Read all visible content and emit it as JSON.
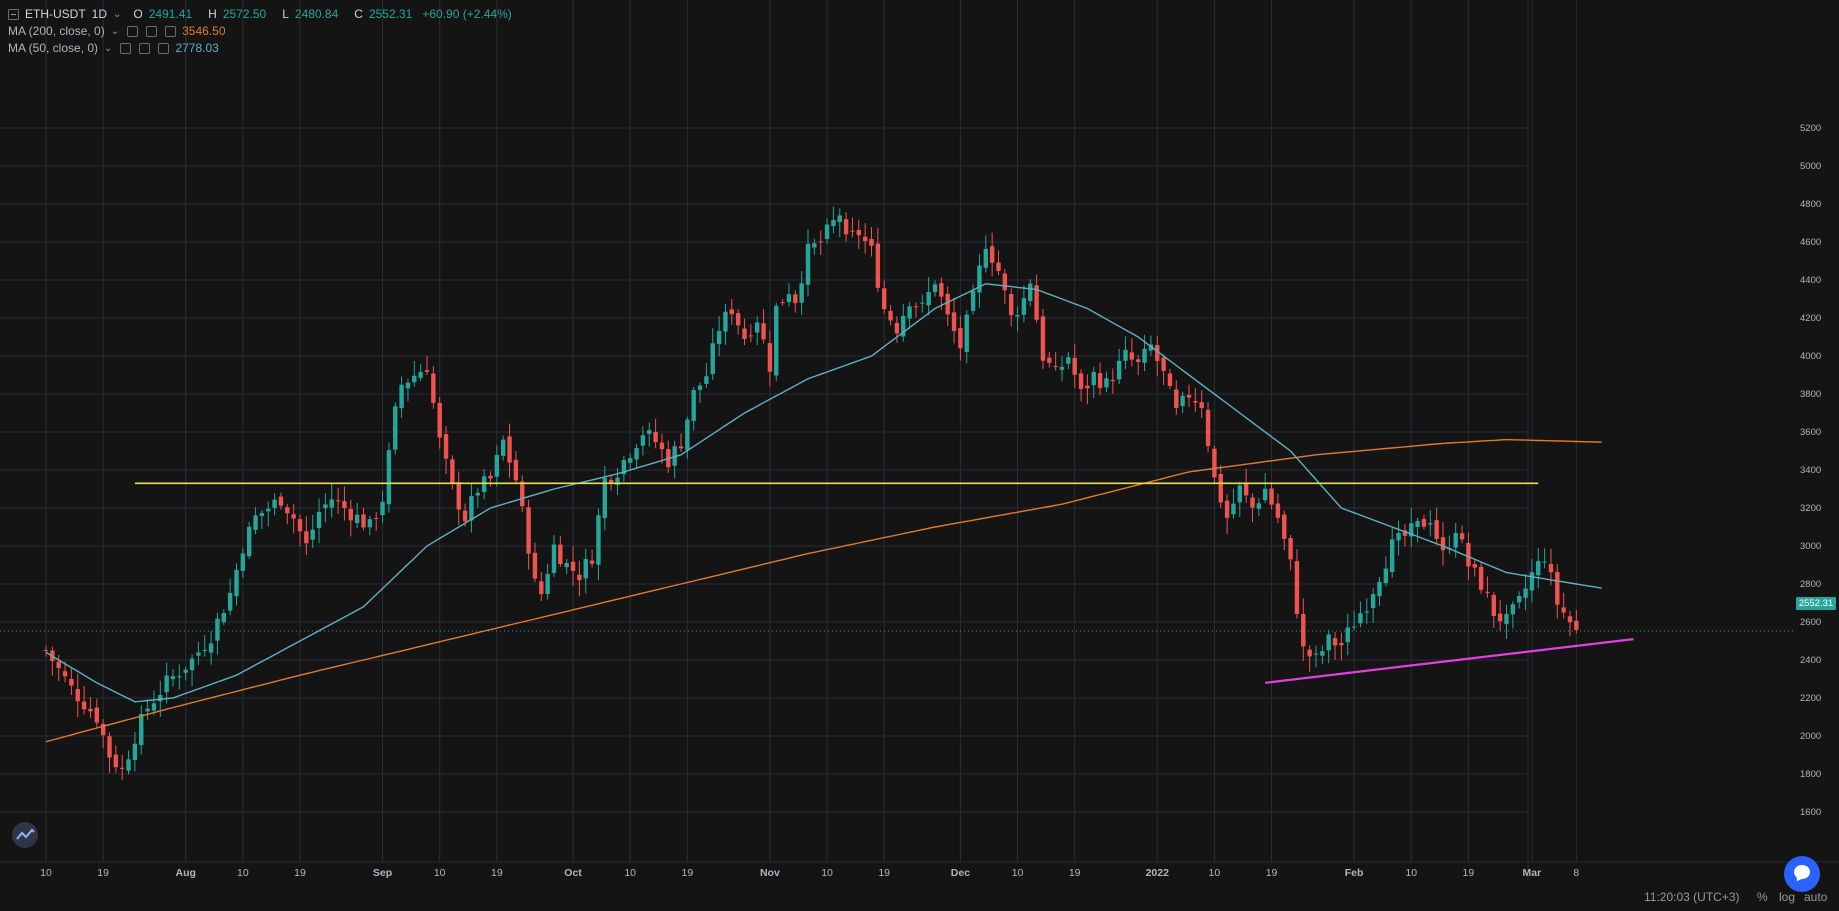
{
  "header": {
    "symbol": "ETH-USDT",
    "interval": "1D",
    "ohlc": {
      "open_label": "O",
      "open": "2491.41",
      "high_label": "H",
      "high": "2572.50",
      "low_label": "L",
      "low": "2480.84",
      "close_label": "C",
      "close": "2552.31",
      "change": "+60.90 (+2.44%)"
    }
  },
  "indicators": [
    {
      "label": "MA (200, close, 0)",
      "value": "3546.50",
      "color": "#e07a2f"
    },
    {
      "label": "MA (50, close, 0)",
      "value": "2778.03",
      "color": "#5fb0c4"
    }
  ],
  "current_price_label": "2552.31",
  "status_bar": {
    "time": "11:20:03 (UTC+3)",
    "percent": "%",
    "log": "log",
    "auto": "auto"
  },
  "colors": {
    "up": "#26a69a",
    "down": "#ef5350",
    "ma200": "#e07a2f",
    "ma50": "#5fb0c4",
    "resistance": "#e8e04a",
    "trendline": "#e040e0",
    "grid": "#2a2d36"
  },
  "chart_data": {
    "type": "candlestick",
    "y_ticks": [
      1600,
      1800,
      2000,
      2200,
      2400,
      2600,
      2800,
      3000,
      3200,
      3400,
      3600,
      3800,
      4000,
      4200,
      4400,
      4600,
      4800,
      5000,
      5200
    ],
    "ylim": [
      1500,
      5300
    ],
    "x_ticks": [
      {
        "label": "10",
        "i": 0
      },
      {
        "label": "19",
        "i": 9
      },
      {
        "label": "Aug",
        "i": 22
      },
      {
        "label": "10",
        "i": 31
      },
      {
        "label": "19",
        "i": 40
      },
      {
        "label": "Sep",
        "i": 53
      },
      {
        "label": "10",
        "i": 62
      },
      {
        "label": "19",
        "i": 71
      },
      {
        "label": "Oct",
        "i": 83
      },
      {
        "label": "10",
        "i": 92
      },
      {
        "label": "19",
        "i": 101
      },
      {
        "label": "Nov",
        "i": 114
      },
      {
        "label": "10",
        "i": 123
      },
      {
        "label": "19",
        "i": 132
      },
      {
        "label": "Dec",
        "i": 144
      },
      {
        "label": "10",
        "i": 153
      },
      {
        "label": "19",
        "i": 162
      },
      {
        "label": "2022",
        "i": 175
      },
      {
        "label": "10",
        "i": 184
      },
      {
        "label": "19",
        "i": 193
      },
      {
        "label": "Feb",
        "i": 206
      },
      {
        "label": "10",
        "i": 215
      },
      {
        "label": "19",
        "i": 224
      },
      {
        "label": "Mar",
        "i": 234
      },
      {
        "label": "8",
        "i": 241
      }
    ],
    "keypoints": [
      [
        0,
        2450
      ],
      [
        4,
        2250
      ],
      [
        8,
        2100
      ],
      [
        10,
        1900
      ],
      [
        12,
        1820
      ],
      [
        14,
        2000
      ],
      [
        16,
        2150
      ],
      [
        19,
        2280
      ],
      [
        23,
        2400
      ],
      [
        26,
        2530
      ],
      [
        29,
        2750
      ],
      [
        31,
        3000
      ],
      [
        33,
        3150
      ],
      [
        35,
        3200
      ],
      [
        37,
        3250
      ],
      [
        39,
        3150
      ],
      [
        41,
        3000
      ],
      [
        43,
        3180
      ],
      [
        45,
        3250
      ],
      [
        47,
        3200
      ],
      [
        49,
        3150
      ],
      [
        51,
        3100
      ],
      [
        53,
        3250
      ],
      [
        55,
        3700
      ],
      [
        56,
        3850
      ],
      [
        58,
        3900
      ],
      [
        60,
        3950
      ],
      [
        62,
        3550
      ],
      [
        64,
        3300
      ],
      [
        66,
        3150
      ],
      [
        68,
        3300
      ],
      [
        70,
        3350
      ],
      [
        72,
        3550
      ],
      [
        74,
        3350
      ],
      [
        76,
        3000
      ],
      [
        77,
        2800
      ],
      [
        78,
        2750
      ],
      [
        80,
        3000
      ],
      [
        82,
        2900
      ],
      [
        84,
        2850
      ],
      [
        86,
        2950
      ],
      [
        88,
        3350
      ],
      [
        90,
        3400
      ],
      [
        92,
        3500
      ],
      [
        94,
        3600
      ],
      [
        96,
        3550
      ],
      [
        98,
        3450
      ],
      [
        100,
        3550
      ],
      [
        102,
        3800
      ],
      [
        104,
        3900
      ],
      [
        106,
        4150
      ],
      [
        108,
        4250
      ],
      [
        110,
        4100
      ],
      [
        112,
        4200
      ],
      [
        114,
        3950
      ],
      [
        115,
        4250
      ],
      [
        117,
        4350
      ],
      [
        118,
        4300
      ],
      [
        120,
        4550
      ],
      [
        122,
        4600
      ],
      [
        124,
        4700
      ],
      [
        125,
        4750
      ],
      [
        126,
        4600
      ],
      [
        128,
        4650
      ],
      [
        130,
        4550
      ],
      [
        132,
        4250
      ],
      [
        134,
        4150
      ],
      [
        136,
        4300
      ],
      [
        138,
        4250
      ],
      [
        140,
        4400
      ],
      [
        142,
        4200
      ],
      [
        144,
        4050
      ],
      [
        146,
        4300
      ],
      [
        148,
        4600
      ],
      [
        150,
        4450
      ],
      [
        152,
        4200
      ],
      [
        154,
        4300
      ],
      [
        155,
        4400
      ],
      [
        157,
        4000
      ],
      [
        159,
        3900
      ],
      [
        161,
        4000
      ],
      [
        163,
        3800
      ],
      [
        165,
        3900
      ],
      [
        167,
        3850
      ],
      [
        170,
        4000
      ],
      [
        172,
        3950
      ],
      [
        174,
        4050
      ],
      [
        176,
        3900
      ],
      [
        178,
        3700
      ],
      [
        180,
        3800
      ],
      [
        182,
        3750
      ],
      [
        184,
        3350
      ],
      [
        186,
        3150
      ],
      [
        188,
        3300
      ],
      [
        190,
        3200
      ],
      [
        192,
        3300
      ],
      [
        194,
        3150
      ],
      [
        196,
        2900
      ],
      [
        198,
        2450
      ],
      [
        200,
        2400
      ],
      [
        202,
        2500
      ],
      [
        204,
        2480
      ],
      [
        206,
        2600
      ],
      [
        208,
        2700
      ],
      [
        210,
        2850
      ],
      [
        212,
        3000
      ],
      [
        214,
        3050
      ],
      [
        216,
        3100
      ],
      [
        218,
        3150
      ],
      [
        220,
        2950
      ],
      [
        222,
        3100
      ],
      [
        224,
        2900
      ],
      [
        226,
        2800
      ],
      [
        228,
        2650
      ],
      [
        230,
        2600
      ],
      [
        232,
        2700
      ],
      [
        234,
        2850
      ],
      [
        236,
        2950
      ],
      [
        238,
        2700
      ],
      [
        240,
        2600
      ],
      [
        241,
        2550
      ]
    ],
    "ma200_points": [
      [
        0,
        1970
      ],
      [
        20,
        2150
      ],
      [
        40,
        2320
      ],
      [
        60,
        2480
      ],
      [
        80,
        2640
      ],
      [
        100,
        2800
      ],
      [
        120,
        2960
      ],
      [
        140,
        3100
      ],
      [
        160,
        3220
      ],
      [
        180,
        3390
      ],
      [
        200,
        3480
      ],
      [
        220,
        3540
      ],
      [
        230,
        3560
      ],
      [
        245,
        3546.5
      ]
    ],
    "ma50_points": [
      [
        0,
        2440
      ],
      [
        8,
        2280
      ],
      [
        14,
        2180
      ],
      [
        20,
        2200
      ],
      [
        30,
        2320
      ],
      [
        40,
        2500
      ],
      [
        50,
        2680
      ],
      [
        60,
        3000
      ],
      [
        70,
        3200
      ],
      [
        80,
        3300
      ],
      [
        90,
        3380
      ],
      [
        100,
        3480
      ],
      [
        110,
        3700
      ],
      [
        120,
        3880
      ],
      [
        130,
        4000
      ],
      [
        140,
        4250
      ],
      [
        148,
        4380
      ],
      [
        156,
        4350
      ],
      [
        164,
        4250
      ],
      [
        172,
        4100
      ],
      [
        180,
        3900
      ],
      [
        188,
        3700
      ],
      [
        196,
        3500
      ],
      [
        204,
        3200
      ],
      [
        212,
        3100
      ],
      [
        220,
        3000
      ],
      [
        230,
        2860
      ],
      [
        245,
        2778
      ]
    ],
    "resistance_level": 3330,
    "trendline": {
      "start_i": 192,
      "start_price": 2280,
      "end_i": 250,
      "end_price": 2510
    },
    "current_price": 2552.31
  }
}
